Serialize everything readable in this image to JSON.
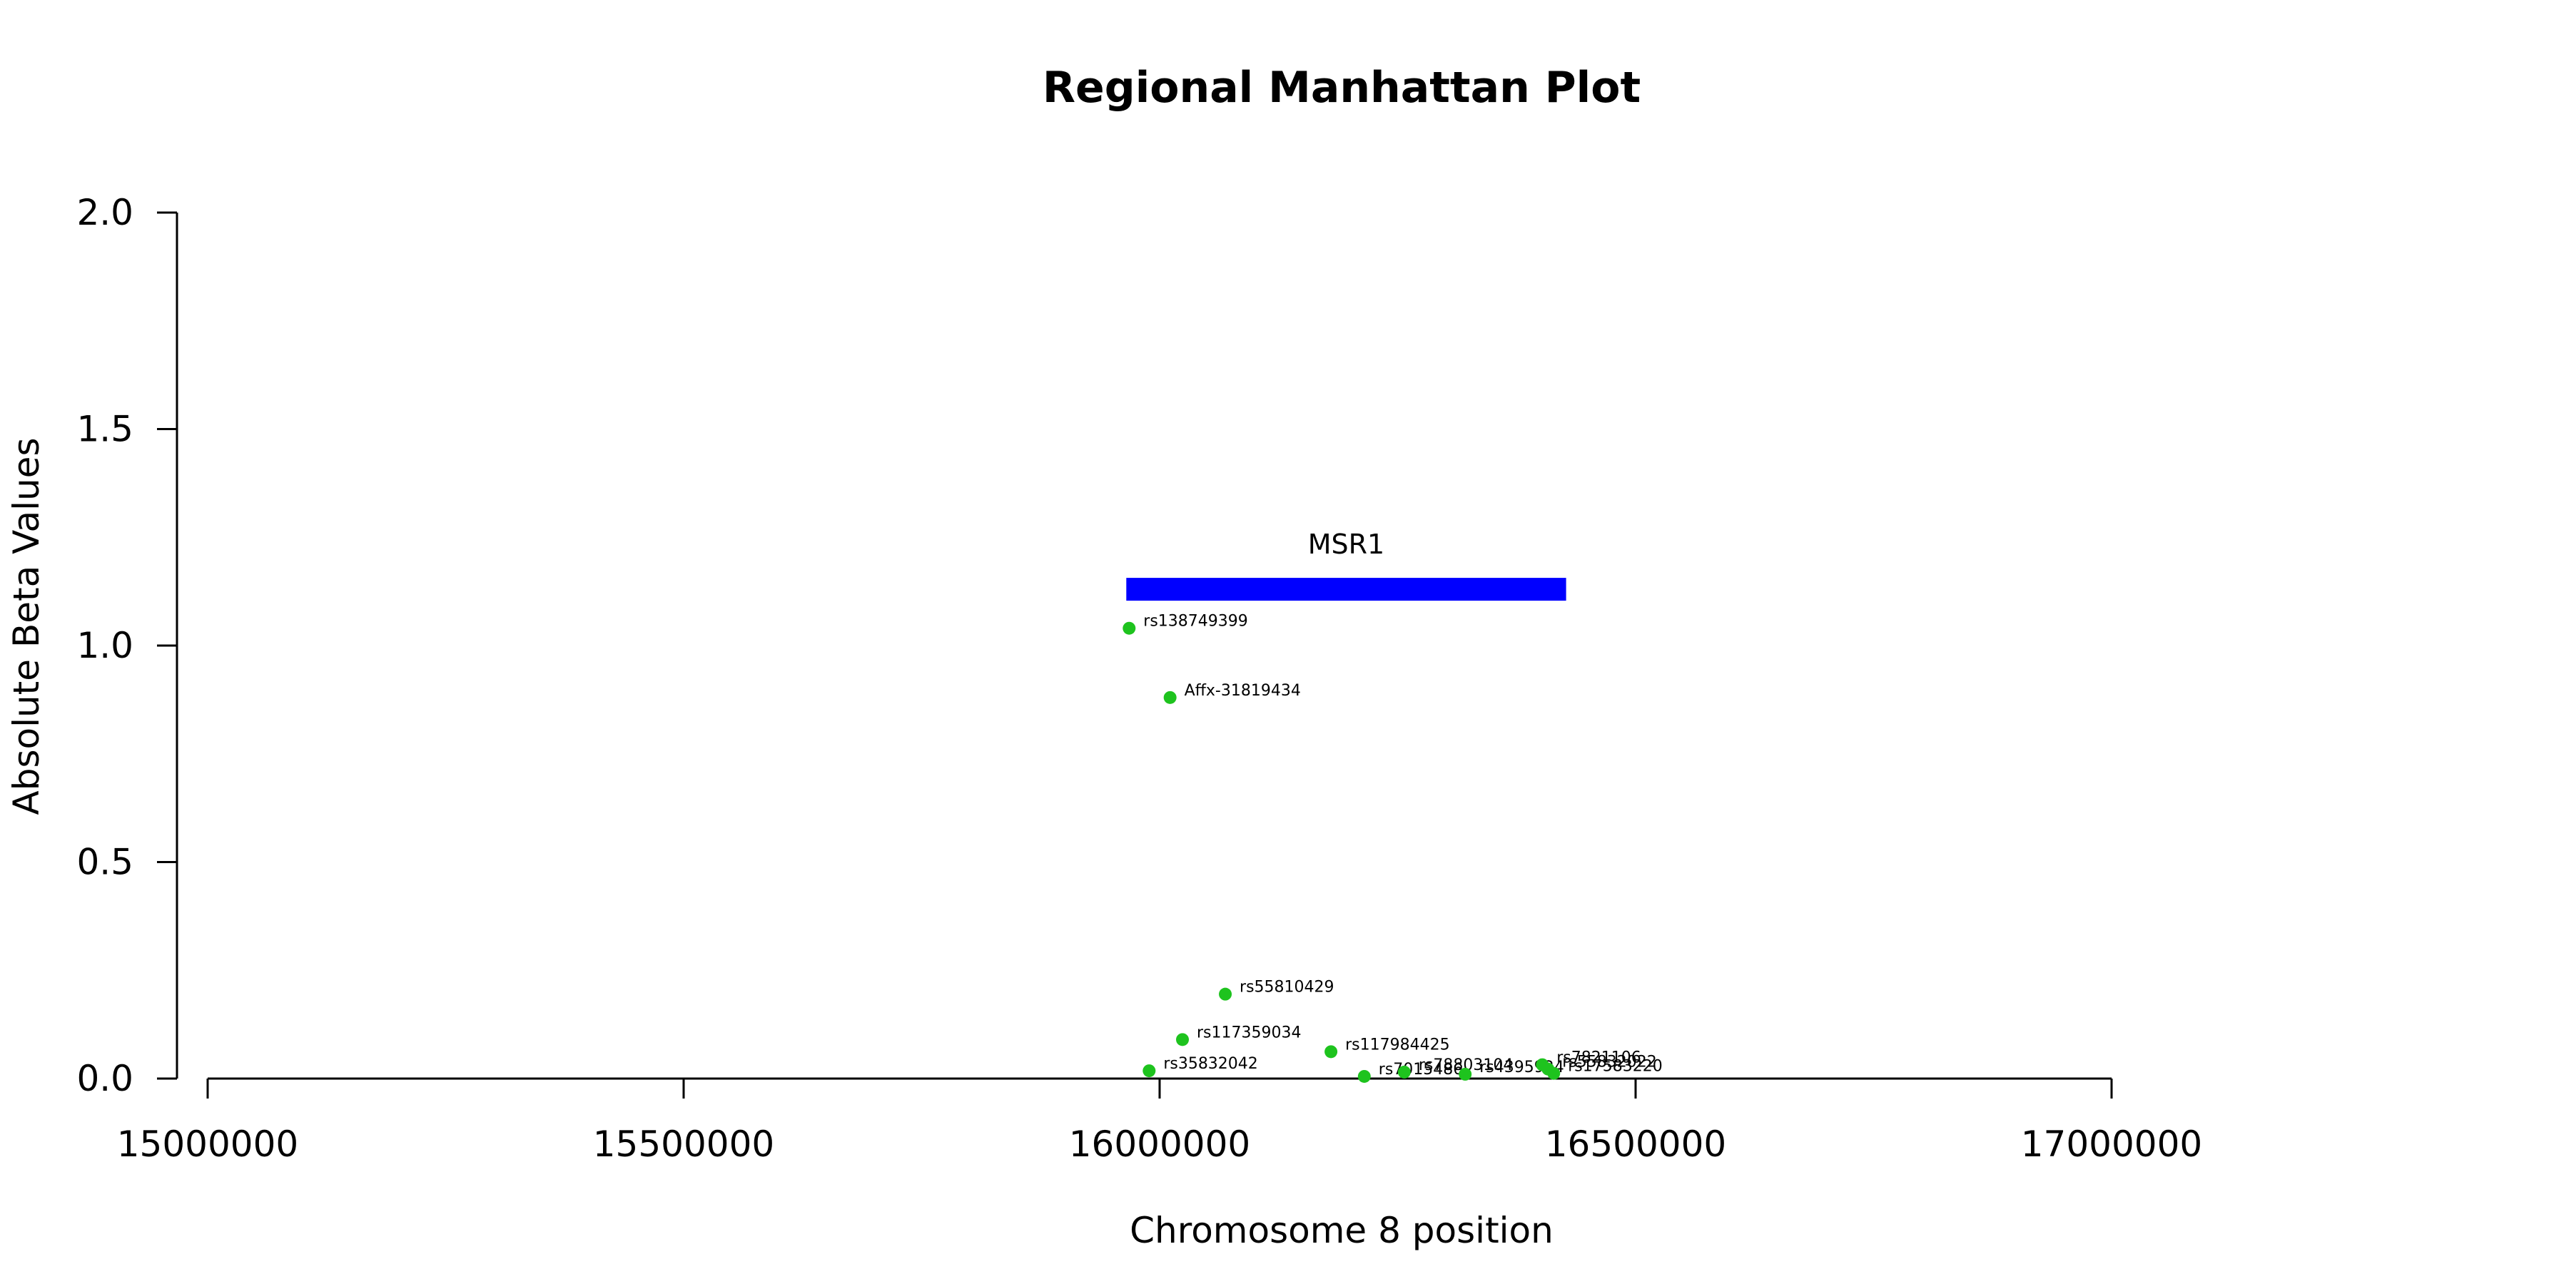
{
  "chart_data": {
    "type": "scatter",
    "title": "Regional Manhattan Plot",
    "xlabel": "Chromosome 8 position",
    "ylabel": "Absolute Beta Values",
    "xlim": [
      15000000,
      17000000
    ],
    "ylim": [
      0,
      2
    ],
    "x_ticks": [
      15000000,
      15500000,
      16000000,
      16500000,
      17000000
    ],
    "x_tick_labels": [
      "15000000",
      "15500000",
      "16000000",
      "16500000",
      "17000000"
    ],
    "y_ticks": [
      0,
      0.5,
      1,
      1.5,
      2
    ],
    "y_tick_labels": [
      "0.0",
      "0.5",
      "1.0",
      "1.5",
      "2.0"
    ],
    "grid": false,
    "point_color": "#1ec31e",
    "gene": {
      "name": "MSR1",
      "start": 15965000,
      "end": 16427000,
      "y": 1.13,
      "color": "#0000ff"
    },
    "points": [
      {
        "label": "rs138749399",
        "x": 15968000,
        "y": 1.04
      },
      {
        "label": "Affx-31819434",
        "x": 16011000,
        "y": 0.88
      },
      {
        "label": "rs55810429",
        "x": 16069000,
        "y": 0.195
      },
      {
        "label": "rs117359034",
        "x": 16024000,
        "y": 0.09
      },
      {
        "label": "rs35832042",
        "x": 15989000,
        "y": 0.018
      },
      {
        "label": "rs117984425",
        "x": 16180000,
        "y": 0.062
      },
      {
        "label": "rs7015486",
        "x": 16215000,
        "y": 0.005
      },
      {
        "label": "rs78803104",
        "x": 16257000,
        "y": 0.015
      },
      {
        "label": "rs4395924",
        "x": 16321000,
        "y": 0.01
      },
      {
        "label": "rs7821106",
        "x": 16402000,
        "y": 0.032
      },
      {
        "label": "rs55832022",
        "x": 16408000,
        "y": 0.022
      },
      {
        "label": "rs17583220",
        "x": 16414000,
        "y": 0.012
      }
    ]
  }
}
